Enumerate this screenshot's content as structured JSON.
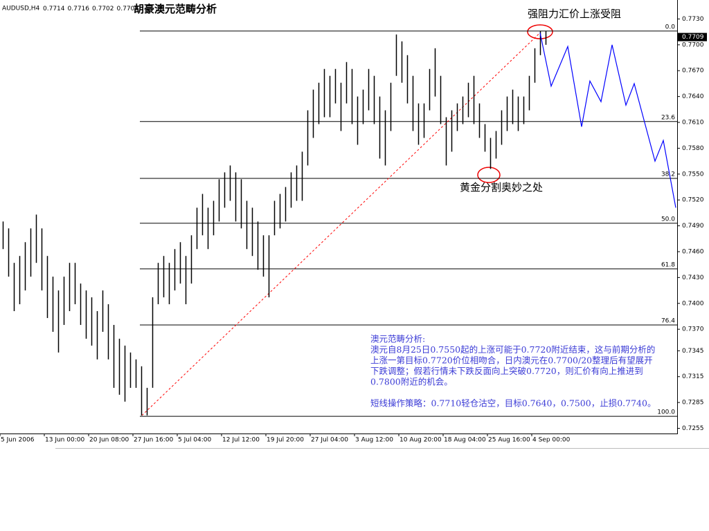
{
  "header": {
    "symbol": "AUDUSD,H4",
    "ohlc": [
      0.7714,
      0.7716,
      0.7702,
      0.7709
    ]
  },
  "chart_data": {
    "type": "ohlc",
    "title": "胡豪澳元范畴分析",
    "color": "#000000",
    "xlim": [
      -0.5,
      121.75
    ],
    "xticks": [
      {
        "value": -0.5,
        "label": "5 Jun 2006"
      },
      {
        "value": 7.5,
        "label": "13 Jun 00:00"
      },
      {
        "value": 15.5,
        "label": "20 Jun 08:00"
      },
      {
        "value": 23.5,
        "label": "27 Jun 16:00"
      },
      {
        "value": 31.5,
        "label": "5 Jul 04:00"
      },
      {
        "value": 39.5,
        "label": "12 Jul 12:00"
      },
      {
        "value": 47.5,
        "label": "19 Jul 20:00"
      },
      {
        "value": 55.5,
        "label": "27 Jul 04:00"
      },
      {
        "value": 63.5,
        "label": "3 Aug 12:00"
      },
      {
        "value": 71.5,
        "label": "10 Aug 20:00"
      },
      {
        "value": 79.5,
        "label": "18 Aug 04:00"
      },
      {
        "value": 87.5,
        "label": "25 Aug 16:00"
      },
      {
        "value": 95.5,
        "label": "4 Sep 00:00"
      }
    ],
    "ylim": [
      0.7249,
      0.7752
    ],
    "yticks": [
      {
        "value": 0.773,
        "label": "0.7730"
      },
      {
        "value": 0.77,
        "label": "0.7700"
      },
      {
        "value": 0.767,
        "label": "0.7670"
      },
      {
        "value": 0.764,
        "label": "0.7640"
      },
      {
        "value": 0.761,
        "label": "0.7610"
      },
      {
        "value": 0.758,
        "label": "0.7580"
      },
      {
        "value": 0.755,
        "label": "0.7550"
      },
      {
        "value": 0.752,
        "label": "0.7520"
      },
      {
        "value": 0.749,
        "label": "0.7490"
      },
      {
        "value": 0.746,
        "label": "0.7460"
      },
      {
        "value": 0.743,
        "label": "0.7430"
      },
      {
        "value": 0.74,
        "label": "0.7400"
      },
      {
        "value": 0.737,
        "label": "0.7370"
      },
      0.7345,
      0.7315,
      0.7285,
      0.7255
    ],
    "current_price": 0.7709,
    "high": [
      0.7495,
      0.7487,
      0.7447,
      0.7455,
      0.7471,
      0.7487,
      0.7503,
      0.7487,
      0.7455,
      0.7431,
      0.7415,
      0.7431,
      0.7447,
      0.7447,
      0.7423,
      0.7415,
      0.7407,
      0.7391,
      0.7415,
      0.7399,
      0.7375,
      0.7359,
      0.7351,
      0.7343,
      0.7335,
      0.7327,
      0.7302,
      0.7407,
      0.7447,
      0.7455,
      0.7447,
      0.7463,
      0.7471,
      0.7455,
      0.7479,
      0.7511,
      0.7527,
      0.7511,
      0.7519,
      0.7544,
      0.7552,
      0.756,
      0.7552,
      0.7544,
      0.7519,
      0.7511,
      0.7495,
      0.7479,
      0.7479,
      0.7519,
      0.7527,
      0.7535,
      0.7552,
      0.756,
      0.7576,
      0.7624,
      0.7648,
      0.7656,
      0.7672,
      0.7664,
      0.7672,
      0.7656,
      0.768,
      0.7672,
      0.764,
      0.7648,
      0.7672,
      0.7664,
      0.764,
      0.7624,
      0.7656,
      0.7712,
      0.7704,
      0.7688,
      0.7664,
      0.7632,
      0.7632,
      0.7672,
      0.7696,
      0.7664,
      0.7616,
      0.7624,
      0.7632,
      0.764,
      0.7656,
      0.7664,
      0.7632,
      0.7608,
      0.7592,
      0.76,
      0.7624,
      0.764,
      0.7648,
      0.764,
      0.764,
      0.7664,
      0.7696,
      0.7716,
      0.7716
    ],
    "low": [
      0.7463,
      0.7431,
      0.7391,
      0.7399,
      0.7415,
      0.7431,
      0.7447,
      0.7415,
      0.7383,
      0.7367,
      0.7343,
      0.7375,
      0.7391,
      0.7399,
      0.7375,
      0.7359,
      0.7351,
      0.7335,
      0.7367,
      0.7335,
      0.7302,
      0.7294,
      0.7286,
      0.7302,
      0.7302,
      0.727,
      0.727,
      0.7302,
      0.7399,
      0.7407,
      0.7399,
      0.7415,
      0.7423,
      0.7399,
      0.7423,
      0.7463,
      0.7479,
      0.7463,
      0.7479,
      0.7495,
      0.7511,
      0.7519,
      0.7495,
      0.7487,
      0.7463,
      0.7455,
      0.7439,
      0.7431,
      0.7407,
      0.7479,
      0.7487,
      0.7495,
      0.7511,
      0.7519,
      0.7519,
      0.756,
      0.7592,
      0.7608,
      0.7616,
      0.7616,
      0.7632,
      0.76,
      0.7632,
      0.7608,
      0.7584,
      0.7608,
      0.7624,
      0.7608,
      0.7568,
      0.756,
      0.76,
      0.7664,
      0.7656,
      0.7632,
      0.76,
      0.7584,
      0.7592,
      0.7624,
      0.764,
      0.7608,
      0.756,
      0.7576,
      0.76,
      0.7608,
      0.7616,
      0.7608,
      0.7592,
      0.7576,
      0.7556,
      0.7568,
      0.7584,
      0.76,
      0.7608,
      0.76,
      0.7608,
      0.7624,
      0.7656,
      0.7688,
      0.77
    ],
    "projection": {
      "color": "#0000ff",
      "x": [
        97,
        99,
        102,
        104.5,
        106,
        108,
        110,
        112.5,
        114,
        117.75,
        119.25,
        121.5
      ],
      "values": [
        0.7714,
        0.7652,
        0.7698,
        0.7605,
        0.7658,
        0.7634,
        0.77,
        0.763,
        0.7655,
        0.7565,
        0.7589,
        0.7511
      ]
    },
    "trendline": {
      "color": "#ff0000",
      "x": [
        25.125,
        97
      ],
      "values": [
        0.727,
        0.7714
      ]
    },
    "fibonacci": {
      "x_start": 24.75,
      "levels": [
        {
          "value": 0.7716,
          "label": "0.0"
        },
        {
          "value": 0.7611,
          "label": "23.6"
        },
        {
          "value": 0.7545,
          "label": "38.2"
        },
        {
          "value": 0.7493,
          "label": "50.0"
        },
        {
          "value": 0.744,
          "label": "61.8"
        },
        {
          "value": 0.7375,
          "label": "76.4"
        },
        {
          "value": 0.7269,
          "label": "100.0"
        }
      ]
    },
    "annotations": [
      "强阻力汇价上涨受阻",
      "黄金分割奥妙之处"
    ],
    "commentary": {
      "color": "#3b3bd6",
      "lines": [
        "澳元范畴分析:",
        "澳元自8月25日0.7550起的上涨可能于0.7720附近结束，这与前期分析的",
        "上涨一第目标0.7720价位相吻合，日内澳元在0.7700/20整理后有望展开",
        "下跌调整；假若行情未下跌反面向上突破0.7720，则汇价有向上推进到",
        "0.7800附近的机会。",
        "短线操作策略：0.7710轻仓沽空，目标0.7640，0.7500，止损0.7740。"
      ]
    }
  }
}
